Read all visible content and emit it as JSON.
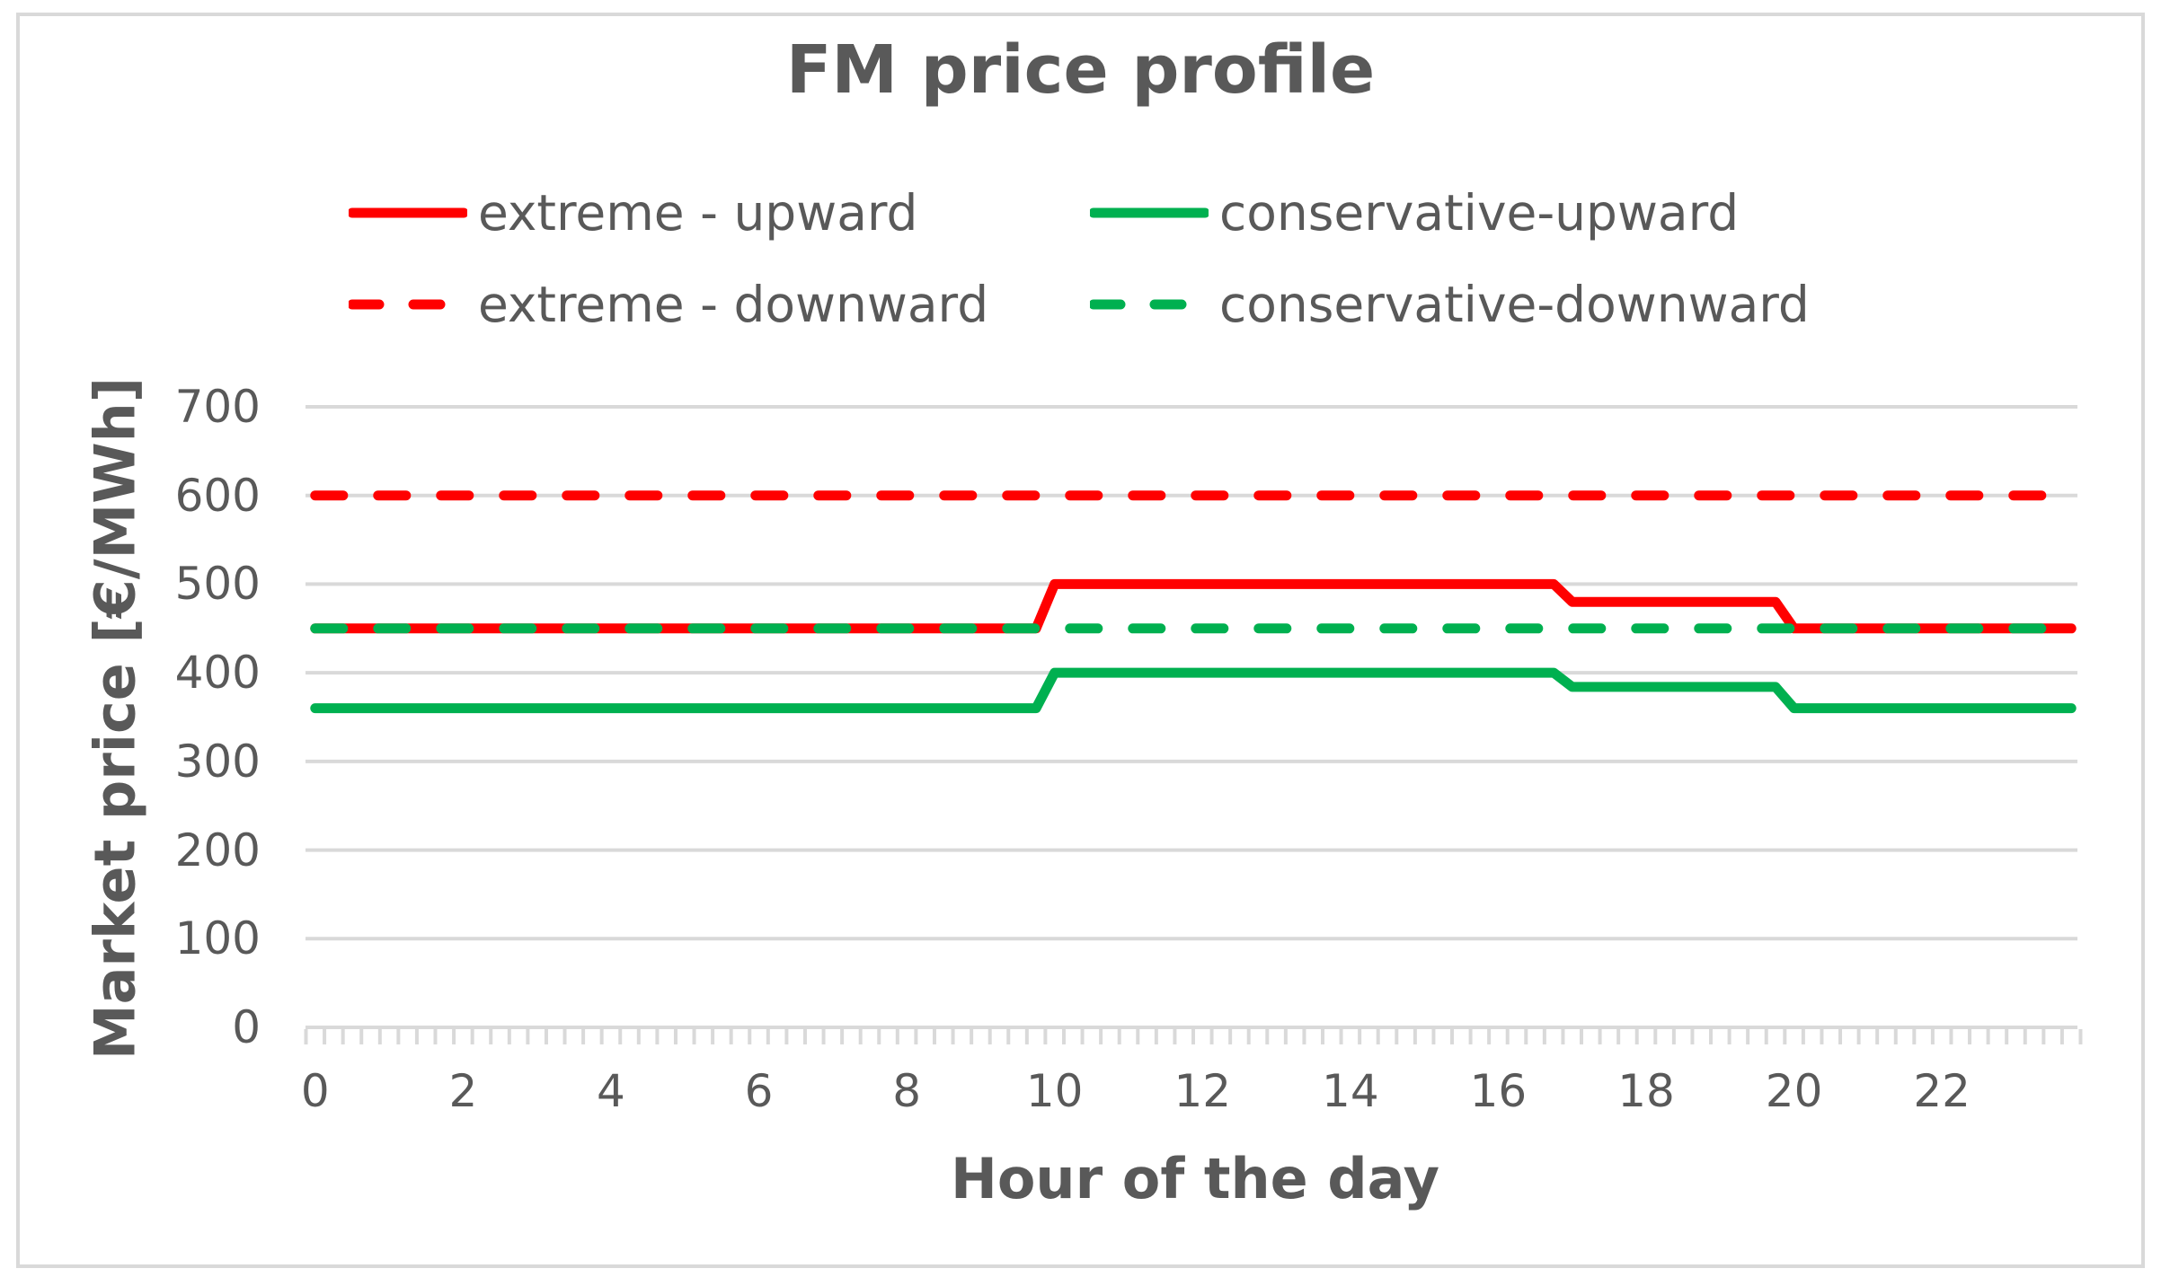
{
  "title": "FM price profile",
  "colors": {
    "extreme": "#FF0000",
    "conservative": "#00B050",
    "grid": "#D9D9D9",
    "text": "#595959"
  },
  "legend": {
    "entries": [
      {
        "label": "extreme - upward",
        "color": "#FF0000",
        "dash": "solid"
      },
      {
        "label": "conservative-upward",
        "color": "#00B050",
        "dash": "solid"
      },
      {
        "label": "extreme - downward",
        "color": "#FF0000",
        "dash": "dashed"
      },
      {
        "label": "conservative-downward",
        "color": "#00B050",
        "dash": "dashed"
      }
    ]
  },
  "axes": {
    "y_title": "Market price [€/MWh]",
    "x_title": "Hour of the day"
  },
  "chart_data": {
    "type": "line",
    "title": "FM price profile",
    "xlabel": "Hour of the day",
    "ylabel": "Market price [€/MWh]",
    "xlim": [
      0,
      23.75
    ],
    "ylim": [
      0,
      700
    ],
    "y_ticks": [
      0,
      100,
      200,
      300,
      400,
      500,
      600,
      700
    ],
    "x_ticks": [
      0,
      2,
      4,
      6,
      8,
      10,
      12,
      14,
      16,
      18,
      20,
      22
    ],
    "minor_x_tick_interval_hours": 0.25,
    "grid": "horizontal",
    "legend_position": "top",
    "series": [
      {
        "name": "extreme - upward",
        "color": "#FF0000",
        "dash": "solid",
        "x": [
          0,
          9.75,
          10,
          16.75,
          17,
          19.75,
          20,
          23.75
        ],
        "y": [
          450,
          450,
          500,
          500,
          480,
          480,
          450,
          450
        ]
      },
      {
        "name": "conservative-upward",
        "color": "#00B050",
        "dash": "solid",
        "x": [
          0,
          9.75,
          10,
          16.75,
          17,
          19.75,
          20,
          23.75
        ],
        "y": [
          360,
          360,
          400,
          400,
          384,
          384,
          360,
          360
        ]
      },
      {
        "name": "extreme - downward",
        "color": "#FF0000",
        "dash": "dashed",
        "x": [
          0,
          23.75
        ],
        "y": [
          600,
          600
        ]
      },
      {
        "name": "conservative-downward",
        "color": "#00B050",
        "dash": "dashed",
        "x": [
          0,
          23.75
        ],
        "y": [
          450,
          450
        ]
      }
    ]
  }
}
